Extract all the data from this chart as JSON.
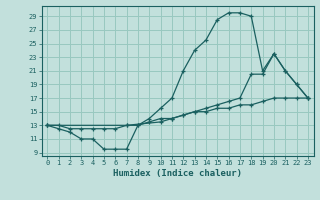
{
  "xlabel": "Humidex (Indice chaleur)",
  "ylabel": "",
  "xlim": [
    -0.5,
    23.5
  ],
  "ylim": [
    8.5,
    30.5
  ],
  "xticks": [
    0,
    1,
    2,
    3,
    4,
    5,
    6,
    7,
    8,
    9,
    10,
    11,
    12,
    13,
    14,
    15,
    16,
    17,
    18,
    19,
    20,
    21,
    22,
    23
  ],
  "yticks": [
    9,
    11,
    13,
    15,
    17,
    19,
    21,
    23,
    25,
    27,
    29
  ],
  "bg_color": "#c2e0dc",
  "grid_color": "#98c8c0",
  "line_color": "#1a6060",
  "lines": [
    {
      "x": [
        0,
        1,
        2,
        3,
        4,
        5,
        6,
        7,
        8,
        9,
        10,
        11,
        12,
        13,
        14,
        15,
        16,
        17,
        18,
        19,
        20,
        21,
        22,
        23
      ],
      "y": [
        13,
        12.5,
        12,
        11,
        11,
        9.5,
        9.5,
        9.5,
        13,
        14,
        15.5,
        17,
        21,
        24,
        25.5,
        28.5,
        29.5,
        29.5,
        29,
        21,
        23.5,
        21,
        19,
        17
      ]
    },
    {
      "x": [
        0,
        1,
        2,
        3,
        4,
        5,
        6,
        7,
        8,
        9,
        10,
        11,
        12,
        13,
        14,
        15,
        16,
        17,
        18,
        19,
        20,
        21,
        22,
        23
      ],
      "y": [
        13,
        13,
        12.5,
        12.5,
        12.5,
        12.5,
        12.5,
        13,
        13,
        13.5,
        14,
        14,
        14.5,
        15,
        15,
        15.5,
        15.5,
        16,
        16,
        16.5,
        17,
        17,
        17,
        17
      ]
    },
    {
      "x": [
        0,
        7,
        10,
        11,
        12,
        13,
        14,
        15,
        16,
        17,
        18,
        19,
        20,
        21,
        22,
        23
      ],
      "y": [
        13,
        13,
        13.5,
        14,
        14.5,
        15,
        15.5,
        16,
        16.5,
        17,
        20.5,
        20.5,
        23.5,
        21,
        19,
        17
      ]
    }
  ]
}
